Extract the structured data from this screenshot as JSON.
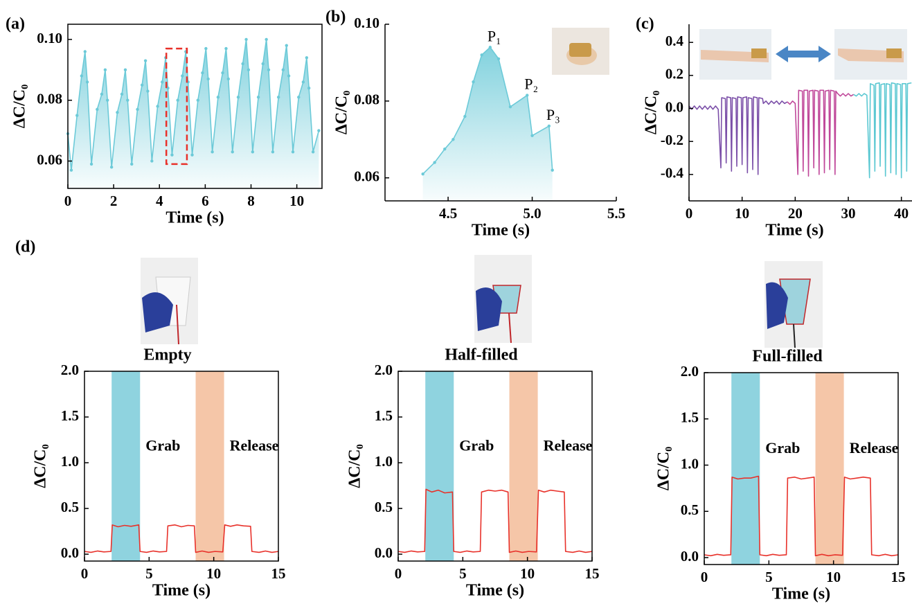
{
  "chart_data": [
    {
      "type": "line",
      "panel_label": "(a)",
      "xlabel": "Time (s)",
      "ylabel": "ΔC/C₀",
      "xlim": [
        0,
        11.1
      ],
      "ylim": [
        0.051,
        0.105
      ],
      "xticks": [
        0,
        2,
        4,
        6,
        8,
        10
      ],
      "yticks": [
        0.06,
        0.08,
        {
          "value": 0.1,
          "label": "0.10"
        }
      ],
      "markers": true,
      "area": true,
      "series": [
        {
          "color": "#6ccad8",
          "x": [
            0,
            0.15,
            0.4,
            0.6,
            0.75,
            0.85,
            1.03,
            1.28,
            1.48,
            1.63,
            1.73,
            1.91,
            2.16,
            2.36,
            2.51,
            2.61,
            2.79,
            3.04,
            3.24,
            3.39,
            3.49,
            3.67,
            3.92,
            4.12,
            4.27,
            4.37,
            4.55,
            4.8,
            5.0,
            5.15,
            5.25,
            5.43,
            5.68,
            5.88,
            6.03,
            6.13,
            6.31,
            6.56,
            6.76,
            6.91,
            7.01,
            7.19,
            7.44,
            7.64,
            7.79,
            7.89,
            8.07,
            8.32,
            8.52,
            8.67,
            8.77,
            8.95,
            9.2,
            9.4,
            9.55,
            9.65,
            9.83,
            10.08,
            10.28,
            10.43,
            10.53,
            10.71,
            10.96
          ],
          "values": [
            0.069,
            0.057,
            0.075,
            0.088,
            0.096,
            0.086,
            0.059,
            0.077,
            0.082,
            0.09,
            0.08,
            0.058,
            0.076,
            0.082,
            0.09,
            0.08,
            0.059,
            0.077,
            0.085,
            0.093,
            0.083,
            0.06,
            0.078,
            0.086,
            0.094,
            0.084,
            0.062,
            0.08,
            0.088,
            0.096,
            0.086,
            0.062,
            0.08,
            0.089,
            0.097,
            0.087,
            0.063,
            0.081,
            0.089,
            0.097,
            0.087,
            0.063,
            0.081,
            0.092,
            0.1,
            0.09,
            0.063,
            0.081,
            0.092,
            0.1,
            0.09,
            0.063,
            0.081,
            0.09,
            0.098,
            0.088,
            0.063,
            0.081,
            0.086,
            0.094,
            0.084,
            0.063,
            0.07
          ]
        }
      ],
      "highlight": {
        "xlim": [
          4.3,
          5.2
        ],
        "ylim": [
          0.059,
          0.097
        ],
        "color": "#e8312a"
      }
    },
    {
      "type": "line",
      "panel_label": "(b)",
      "xlabel": "Time (s)",
      "ylabel": "ΔC/C₀",
      "xlim": [
        4.125,
        5.5
      ],
      "ylim": [
        0.054,
        0.1
      ],
      "xticks": [
        4.5,
        {
          "value": 5,
          "label": "5.0"
        },
        5.5
      ],
      "yticks": [
        0.06,
        0.08,
        {
          "value": 0.1,
          "label": "0.10"
        }
      ],
      "markers": true,
      "area": true,
      "series": [
        {
          "color": "#6ccad8",
          "x": [
            4.35,
            4.42,
            4.48,
            4.53,
            4.6,
            4.65,
            4.7,
            4.75,
            4.8,
            4.87,
            4.97,
            5.0,
            5.1,
            5.12
          ],
          "values": [
            0.061,
            0.064,
            0.0675,
            0.07,
            0.076,
            0.085,
            0.092,
            0.094,
            0.091,
            0.0785,
            0.0815,
            0.071,
            0.0735,
            0.062
          ]
        }
      ],
      "annotations": [
        {
          "text": "P₁",
          "x": 4.75,
          "y": 0.094
        },
        {
          "text": "P₂",
          "x": 4.97,
          "y": 0.0815
        },
        {
          "text": "P₃",
          "x": 5.1,
          "y": 0.0735
        }
      ]
    },
    {
      "type": "line",
      "panel_label": "(c)",
      "xlabel": "Time (s)",
      "ylabel": "ΔC/C₀",
      "xlim": [
        0,
        42
      ],
      "ylim": [
        -0.56,
        0.51
      ],
      "xticks": [
        0,
        10,
        20,
        30,
        40
      ],
      "yticks": [
        -0.4,
        -0.2,
        {
          "value": 0,
          "label": "0.0"
        },
        0.2,
        0.4
      ],
      "series": [
        {
          "color": "#7b4fa8",
          "x": [
            0,
            0.5,
            1,
            1.5,
            2,
            2.5,
            3,
            3.5,
            4,
            4.5,
            5,
            5.5,
            6,
            6.15,
            6.85,
            7,
            7.15,
            7.85,
            8,
            8.15,
            8.85,
            9,
            9.15,
            9.85,
            10,
            10.15,
            10.85,
            11,
            11.15,
            11.85,
            12,
            12.15,
            12.85,
            13,
            13.15,
            13.85,
            14,
            14.5,
            15,
            15.5,
            16,
            16.5,
            17,
            17.5,
            18,
            18.5
          ],
          "values": [
            0.015,
            -0.005,
            0.015,
            -0.005,
            0.015,
            -0.005,
            0.015,
            -0.005,
            0.015,
            -0.005,
            0.015,
            -0.005,
            -0.36,
            0.065,
            0.06,
            -0.33,
            0.07,
            0.065,
            -0.38,
            0.065,
            0.06,
            -0.35,
            0.07,
            0.065,
            -0.34,
            0.065,
            0.07,
            -0.39,
            0.065,
            0.06,
            -0.37,
            0.07,
            0.065,
            -0.4,
            0.065,
            0.06,
            0.03,
            0.045,
            0.025,
            0.045,
            0.03,
            0.045,
            0.025,
            0.045,
            0.03,
            0.04
          ]
        },
        {
          "color": "#c0489a",
          "x": [
            18.5,
            19,
            19.5,
            20,
            20.5,
            20.65,
            21.35,
            21.5,
            21.65,
            22.35,
            22.5,
            22.65,
            23.35,
            23.5,
            23.65,
            24.35,
            24.5,
            24.65,
            25.35,
            25.5,
            25.65,
            26.35,
            26.5,
            26.65,
            27.35,
            27.5,
            27.65,
            28,
            28.5,
            29,
            29.5,
            30,
            30.5,
            31
          ],
          "values": [
            0.04,
            0.025,
            0.045,
            0.03,
            -0.4,
            0.11,
            0.105,
            -0.38,
            0.11,
            0.11,
            -0.41,
            0.105,
            0.11,
            -0.36,
            0.11,
            0.105,
            -0.4,
            0.11,
            0.11,
            -0.39,
            0.105,
            0.11,
            -0.37,
            0.11,
            0.105,
            -0.4,
            0.105,
            0.09,
            0.075,
            0.09,
            0.075,
            0.09,
            0.075,
            0.085
          ]
        },
        {
          "color": "#5bc8d2",
          "x": [
            31,
            31.5,
            32,
            32.5,
            33,
            33.5,
            34,
            34.15,
            34.85,
            35,
            35.15,
            35.85,
            36,
            36.15,
            36.85,
            37,
            37.15,
            37.85,
            38,
            38.15,
            38.85,
            39,
            39.15,
            39.85,
            40,
            40.15,
            40.85,
            41,
            41.15,
            41.9
          ],
          "values": [
            0.085,
            0.075,
            0.09,
            0.075,
            0.09,
            0.08,
            -0.42,
            0.15,
            0.14,
            -0.38,
            0.15,
            0.155,
            -0.35,
            0.145,
            0.15,
            -0.41,
            0.15,
            0.145,
            -0.39,
            0.155,
            0.15,
            -0.4,
            0.15,
            0.145,
            -0.42,
            0.15,
            0.15,
            -0.38,
            0.15,
            0.155
          ]
        }
      ]
    },
    {
      "type": "line",
      "panel_label": "(d)",
      "title": "Empty",
      "xlabel": "Time (s)",
      "ylabel": "ΔC/C₀",
      "xlim": [
        0,
        15
      ],
      "ylim": [
        -0.075,
        2.0
      ],
      "xticks": [
        0,
        5,
        10,
        15
      ],
      "yticks": [
        {
          "value": 0,
          "label": "0.0"
        },
        0.5,
        {
          "value": 1,
          "label": "1.0"
        },
        1.5,
        {
          "value": 2,
          "label": "2.0"
        }
      ],
      "bands": [
        {
          "label": "Grab",
          "xlim": [
            2.1,
            4.3
          ],
          "color": "#8fd3df",
          "label_color": "#6ccad8"
        },
        {
          "label": "Release",
          "xlim": [
            8.6,
            10.8
          ],
          "color": "#f5c6a8",
          "label_color": "#d4773a"
        }
      ],
      "series": [
        {
          "color": "#e8312a",
          "x": [
            0,
            0.5,
            1,
            1.5,
            2.05,
            2.15,
            2.6,
            3.1,
            3.6,
            4.2,
            4.3,
            4.8,
            5.3,
            5.8,
            6.35,
            6.45,
            7,
            7.5,
            8,
            8.5,
            8.6,
            9.1,
            9.6,
            10.1,
            10.7,
            10.85,
            11.3,
            11.8,
            12.3,
            12.85,
            12.95,
            13.5,
            14,
            14.5,
            15
          ],
          "values": [
            0.03,
            0.02,
            0.035,
            0.025,
            0.03,
            0.32,
            0.3,
            0.315,
            0.305,
            0.32,
            0.03,
            0.02,
            0.035,
            0.025,
            0.03,
            0.31,
            0.32,
            0.3,
            0.315,
            0.31,
            0.02,
            0.035,
            0.02,
            0.03,
            0.025,
            0.32,
            0.305,
            0.32,
            0.31,
            0.305,
            0.03,
            0.02,
            0.035,
            0.02,
            0.03
          ]
        }
      ]
    },
    {
      "type": "line",
      "title": "Half-filled",
      "xlabel": "Time (s)",
      "ylabel": "ΔC/C₀",
      "xlim": [
        0,
        15
      ],
      "ylim": [
        -0.075,
        2.0
      ],
      "xticks": [
        0,
        5,
        10,
        15
      ],
      "yticks": [
        {
          "value": 0,
          "label": "0.0"
        },
        0.5,
        {
          "value": 1,
          "label": "1.0"
        },
        1.5,
        {
          "value": 2,
          "label": "2.0"
        }
      ],
      "bands": [
        {
          "label": "Grab",
          "xlim": [
            2.1,
            4.3
          ],
          "color": "#8fd3df",
          "label_color": "#6ccad8"
        },
        {
          "label": "Release",
          "xlim": [
            8.6,
            10.8
          ],
          "color": "#f5c6a8",
          "label_color": "#d4773a"
        }
      ],
      "series": [
        {
          "color": "#e8312a",
          "x": [
            0,
            0.5,
            1,
            1.5,
            2.05,
            2.15,
            2.6,
            3.1,
            3.6,
            4.2,
            4.3,
            4.8,
            5.3,
            5.8,
            6.35,
            6.45,
            7,
            7.5,
            8,
            8.5,
            8.6,
            9.1,
            9.6,
            10.1,
            10.7,
            10.85,
            11.3,
            11.8,
            12.3,
            12.85,
            12.95,
            13.5,
            14,
            14.5,
            15
          ],
          "values": [
            0.03,
            0.02,
            0.035,
            0.025,
            0.03,
            0.71,
            0.68,
            0.7,
            0.67,
            0.68,
            0.03,
            0.02,
            0.035,
            0.025,
            0.03,
            0.68,
            0.7,
            0.69,
            0.7,
            0.68,
            0.02,
            0.035,
            0.02,
            0.03,
            0.025,
            0.7,
            0.68,
            0.7,
            0.69,
            0.68,
            0.03,
            0.02,
            0.035,
            0.02,
            0.03
          ]
        }
      ]
    },
    {
      "type": "line",
      "title": "Full-filled",
      "xlabel": "Time (s)",
      "ylabel": "ΔC/C₀",
      "xlim": [
        0,
        15
      ],
      "ylim": [
        -0.075,
        2.0
      ],
      "xticks": [
        0,
        5,
        10,
        15
      ],
      "yticks": [
        {
          "value": 0,
          "label": "0.0"
        },
        0.5,
        {
          "value": 1,
          "label": "1.0"
        },
        1.5,
        {
          "value": 2,
          "label": "2.0"
        }
      ],
      "bands": [
        {
          "label": "Grab",
          "xlim": [
            2.1,
            4.3
          ],
          "color": "#8fd3df",
          "label_color": "#6ccad8"
        },
        {
          "label": "Release",
          "xlim": [
            8.6,
            10.8
          ],
          "color": "#f5c6a8",
          "label_color": "#d4773a"
        }
      ],
      "series": [
        {
          "color": "#e8312a",
          "x": [
            0,
            0.5,
            1,
            1.5,
            2.05,
            2.15,
            2.6,
            3.1,
            3.6,
            4.2,
            4.3,
            4.8,
            5.3,
            5.8,
            6.35,
            6.45,
            7,
            7.5,
            8,
            8.5,
            8.6,
            9.1,
            9.6,
            10.1,
            10.7,
            10.85,
            11.3,
            11.8,
            12.3,
            12.85,
            12.95,
            13.5,
            14,
            14.5,
            15
          ],
          "values": [
            0.03,
            0.02,
            0.035,
            0.025,
            0.03,
            0.87,
            0.85,
            0.86,
            0.86,
            0.88,
            0.03,
            0.02,
            0.035,
            0.025,
            0.03,
            0.86,
            0.87,
            0.85,
            0.86,
            0.87,
            0.02,
            0.035,
            0.02,
            0.03,
            0.025,
            0.87,
            0.85,
            0.86,
            0.87,
            0.86,
            0.03,
            0.02,
            0.035,
            0.02,
            0.03
          ]
        }
      ]
    }
  ]
}
